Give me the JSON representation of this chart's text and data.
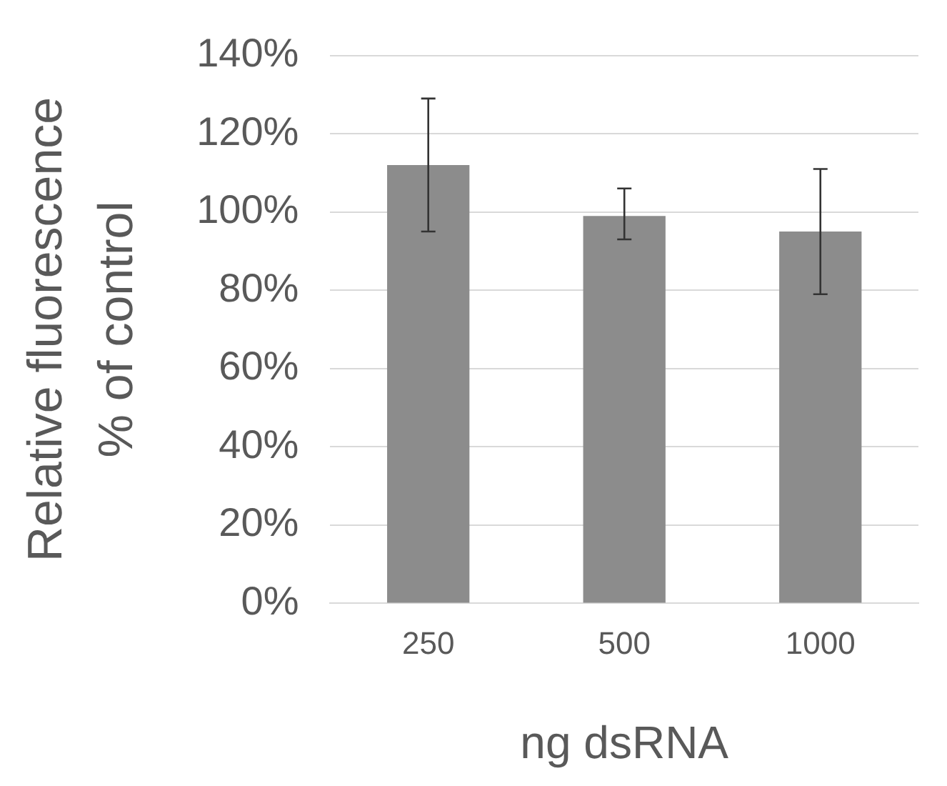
{
  "chart_data": {
    "type": "bar",
    "xlabel": "ng dsRNA",
    "ylabel": "Relative fluorescence\n% of control",
    "categories": [
      "250",
      "500",
      "1000"
    ],
    "series": [
      {
        "color": "#8c8c8c",
        "values": [
          112,
          99,
          95
        ],
        "errors": [
          [
            95,
            129
          ],
          [
            93,
            106
          ],
          [
            79,
            111
          ]
        ]
      }
    ],
    "ylim": [
      0,
      140
    ],
    "yticks": [
      {
        "value": 0,
        "label": "0%"
      },
      {
        "value": 20,
        "label": "20%"
      },
      {
        "value": 40,
        "label": "40%"
      },
      {
        "value": 60,
        "label": "60%"
      },
      {
        "value": 80,
        "label": "80%"
      },
      {
        "value": 100,
        "label": "100%"
      },
      {
        "value": 120,
        "label": "120%"
      },
      {
        "value": 140,
        "label": "140%"
      }
    ],
    "grid": "y",
    "legend": false
  }
}
